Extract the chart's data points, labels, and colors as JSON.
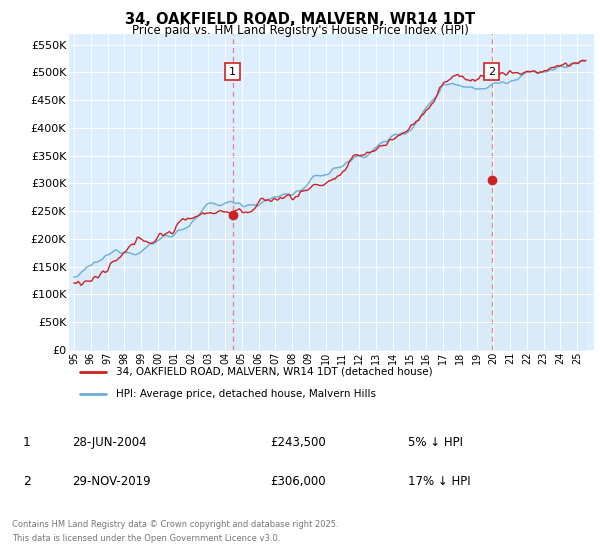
{
  "title": "34, OAKFIELD ROAD, MALVERN, WR14 1DT",
  "subtitle": "Price paid vs. HM Land Registry's House Price Index (HPI)",
  "yticks": [
    0,
    50000,
    100000,
    150000,
    200000,
    250000,
    300000,
    350000,
    400000,
    450000,
    500000,
    550000
  ],
  "hpi_color": "#6baed6",
  "hpi_fill_color": "#d6e8f5",
  "price_color": "#cc2222",
  "dashed_color": "#e08080",
  "marker1_x": 2004.46,
  "marker1_y": 243500,
  "marker2_x": 2019.91,
  "marker2_y": 306000,
  "legend_line1": "34, OAKFIELD ROAD, MALVERN, WR14 1DT (detached house)",
  "legend_line2": "HPI: Average price, detached house, Malvern Hills",
  "footer1": "Contains HM Land Registry data © Crown copyright and database right 2025.",
  "footer2": "This data is licensed under the Open Government Licence v3.0.",
  "table_row1": [
    "1",
    "28-JUN-2004",
    "£243,500",
    "5% ↓ HPI"
  ],
  "table_row2": [
    "2",
    "29-NOV-2019",
    "£306,000",
    "17% ↓ HPI"
  ],
  "bg_color": "#ffffff",
  "plot_bg_color": "#ddeeff",
  "seed": 12345,
  "start_year": 1995,
  "end_year": 2025.5,
  "xlim_left": 1994.7,
  "xlim_right": 2026.0,
  "ylim_top": 570000
}
